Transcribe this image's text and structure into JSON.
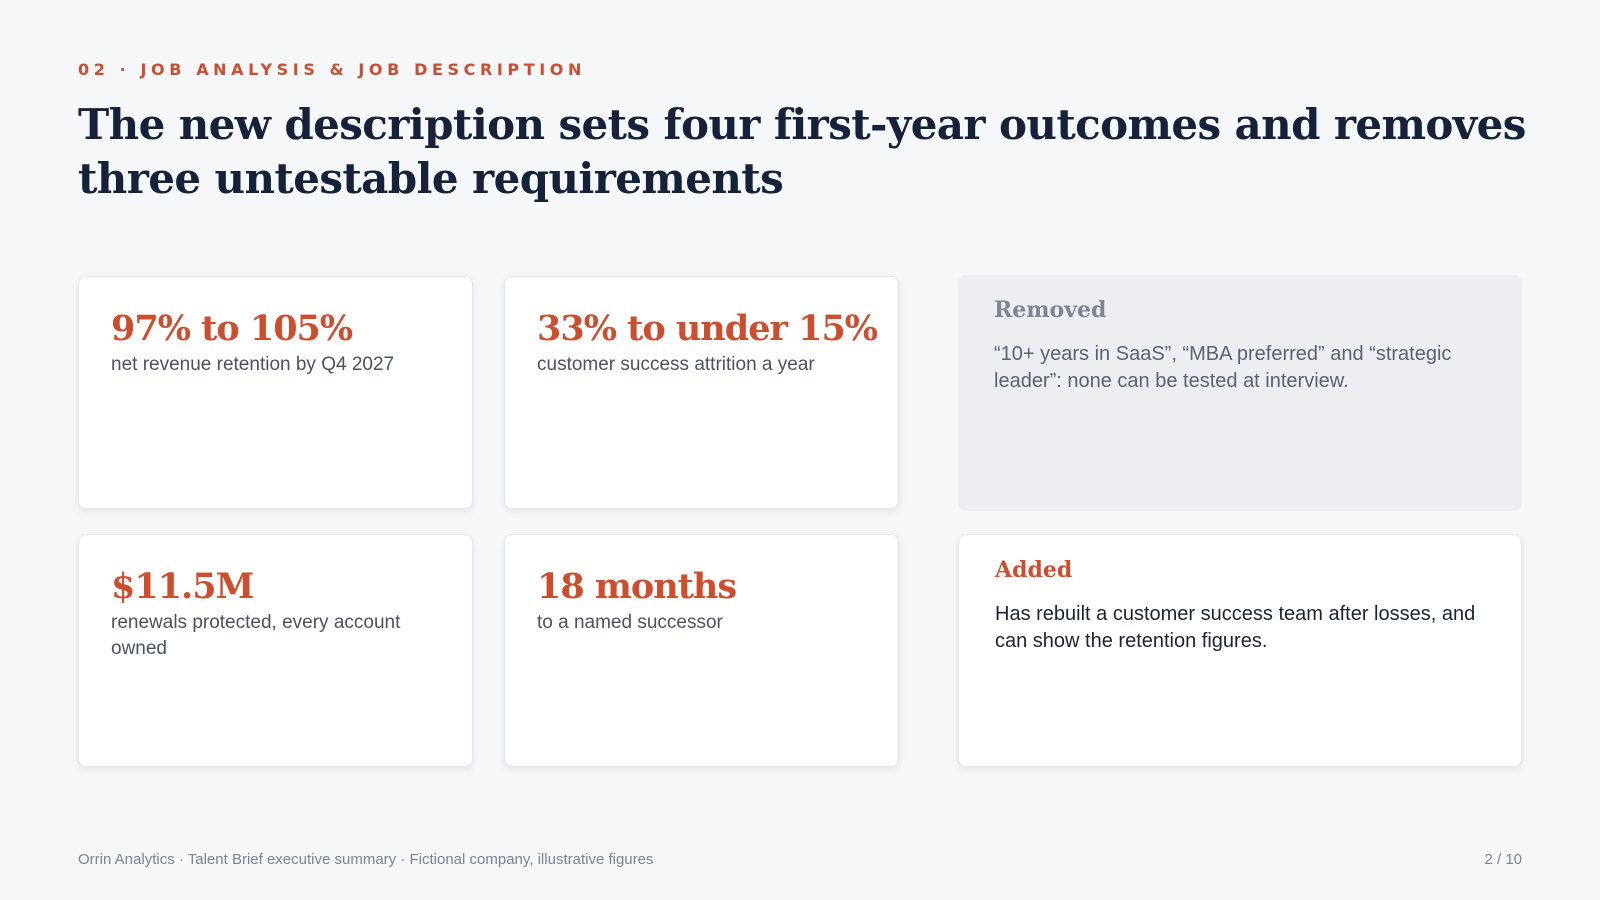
{
  "section": {
    "eyebrow": "02 · JOB ANALYSIS & JOB DESCRIPTION",
    "title": "The new description sets four first-year outcomes and removes three untestable requirements"
  },
  "outcomes": [
    {
      "value": "97% to 105%",
      "label": "net revenue retention by Q4 2027"
    },
    {
      "value": "33% to under 15%",
      "label": "customer success attrition a year"
    },
    {
      "value": "$11.5M",
      "label": "renewals protected, every account owned"
    },
    {
      "value": "18 months",
      "label": "to a named successor"
    }
  ],
  "removed": {
    "heading": "Removed",
    "body": "“10+ years in SaaS”, “MBA preferred” and “strategic leader”: none can be tested at interview."
  },
  "added": {
    "heading": "Added",
    "body": "Has rebuilt a customer success team after losses, and can show the retention figures."
  },
  "footer": {
    "text": "Orrin Analytics · Talent Brief executive summary · Fictional company, illustrative figures",
    "page": "2 / 10"
  },
  "colors": {
    "accent": "#cc4e2f",
    "title": "#16223a",
    "background": "#f6f7f9"
  }
}
